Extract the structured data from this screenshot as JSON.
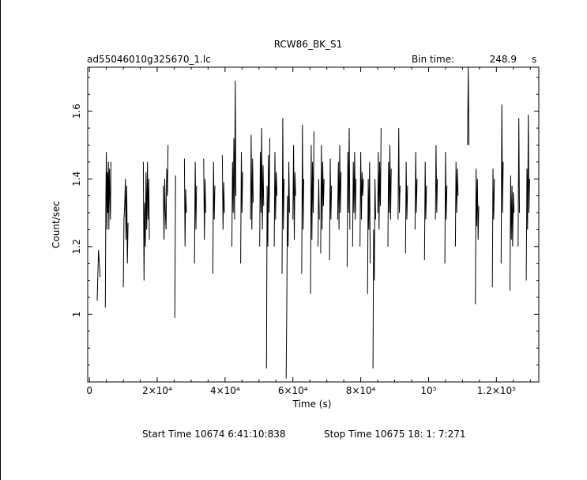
{
  "chart_data": {
    "type": "line",
    "title": "RCW86_BK_S1",
    "file_label": "ad55046010g325670_1.lc",
    "bin_time_label": "Bin time:",
    "bin_time_value": "248.9",
    "bin_time_unit": "s",
    "xlabel": "Time (s)",
    "ylabel": "Count/sec",
    "xlim": [
      -500,
      132500
    ],
    "ylim": [
      0.8,
      1.73
    ],
    "x_ticks": [
      {
        "value": 0,
        "label": "0"
      },
      {
        "value": 20000,
        "label": "2×10⁴"
      },
      {
        "value": 40000,
        "label": "4×10⁴"
      },
      {
        "value": 60000,
        "label": "6×10⁴"
      },
      {
        "value": 80000,
        "label": "8×10⁴"
      },
      {
        "value": 100000,
        "label": "10⁵"
      },
      {
        "value": 120000,
        "label": "1.2×10⁵"
      }
    ],
    "y_ticks": [
      {
        "value": 1.0,
        "label": "1"
      },
      {
        "value": 1.2,
        "label": "1.2"
      },
      {
        "value": 1.4,
        "label": "1.4"
      },
      {
        "value": 1.6,
        "label": "1.6"
      }
    ],
    "start_time_label": "Start Time 10674  6:41:10:838",
    "stop_time_label": "Stop Time 10675 18: 1: 7:271",
    "segments": [
      {
        "x": [
          2300,
          2700,
          3200
        ],
        "y": [
          1.04,
          1.19,
          1.11
        ]
      },
      {
        "x": [
          4700,
          4850,
          5000,
          5150,
          5300,
          5450,
          5600,
          5750,
          5900,
          6050,
          6200,
          6350
        ],
        "y": [
          1.02,
          1.34,
          1.48,
          1.25,
          1.42,
          1.3,
          1.45,
          1.25,
          1.43,
          1.36,
          1.28,
          1.45
        ]
      },
      {
        "x": [
          10000,
          10200,
          10400,
          10600,
          10800,
          11000,
          11200,
          11400
        ],
        "y": [
          1.08,
          1.28,
          1.32,
          1.4,
          1.22,
          1.38,
          1.15,
          1.27
        ]
      },
      {
        "x": [
          15900,
          16100,
          16300,
          16500,
          16700,
          16900,
          17100,
          17300,
          17500,
          17700
        ],
        "y": [
          1.45,
          1.1,
          1.33,
          1.2,
          1.42,
          1.25,
          1.45,
          1.28,
          1.4,
          1.22
        ]
      },
      {
        "x": [
          21800,
          22000,
          22200,
          22400,
          22600,
          22800,
          23000,
          23200
        ],
        "y": [
          1.38,
          1.22,
          1.4,
          1.3,
          1.25,
          1.43,
          1.35,
          1.5
        ]
      },
      {
        "x": [
          25200,
          25400
        ],
        "y": [
          0.99,
          1.41
        ]
      },
      {
        "x": [
          28000,
          28200,
          28400,
          28600
        ],
        "y": [
          1.46,
          1.2,
          1.37,
          1.3
        ]
      },
      {
        "x": [
          31000,
          31200,
          31400,
          31600
        ],
        "y": [
          1.15,
          1.45,
          1.25,
          1.38
        ]
      },
      {
        "x": [
          33700,
          33900,
          34100,
          34300
        ],
        "y": [
          1.46,
          1.22,
          1.4,
          1.3
        ]
      },
      {
        "x": [
          36400,
          36600,
          36800,
          37000
        ],
        "y": [
          1.12,
          1.45,
          1.28,
          1.38
        ]
      },
      {
        "x": [
          39200,
          39400,
          39600,
          39800
        ],
        "y": [
          1.47,
          1.25,
          1.39,
          1.3
        ]
      },
      {
        "x": [
          42000,
          42200,
          42400,
          42600,
          42800,
          43000,
          43200
        ],
        "y": [
          1.2,
          1.45,
          1.3,
          1.52,
          1.28,
          1.69,
          1.35
        ]
      },
      {
        "x": [
          44600,
          44800,
          45000,
          45200
        ],
        "y": [
          1.15,
          1.48,
          1.3,
          1.42
        ]
      },
      {
        "x": [
          47500,
          47700,
          47900,
          48100,
          48300
        ],
        "y": [
          1.28,
          1.53,
          1.25,
          1.46,
          1.33
        ]
      },
      {
        "x": [
          50200,
          50400,
          50600,
          50800,
          51000,
          51200,
          51400
        ],
        "y": [
          1.2,
          1.48,
          1.3,
          1.55,
          1.25,
          1.44,
          1.32
        ]
      },
      {
        "x": [
          52200,
          52400,
          52600,
          52800,
          53000,
          53200
        ],
        "y": [
          0.84,
          1.38,
          1.2,
          1.47,
          1.3,
          1.52
        ]
      },
      {
        "x": [
          54500,
          54700,
          54900,
          55100,
          55300
        ],
        "y": [
          1.2,
          1.48,
          1.28,
          1.42,
          1.35
        ]
      },
      {
        "x": [
          56800,
          57000,
          57200,
          57400
        ],
        "y": [
          1.12,
          1.58,
          1.25,
          1.4
        ]
      },
      {
        "x": [
          58000,
          58200,
          58400,
          58600,
          58800,
          59000
        ],
        "y": [
          0.81,
          1.03,
          1.35,
          1.2,
          1.45,
          1.3
        ]
      },
      {
        "x": [
          60000,
          60200,
          60400,
          60600,
          60800
        ],
        "y": [
          1.28,
          1.5,
          1.22,
          1.42,
          1.35
        ]
      },
      {
        "x": [
          62600,
          62800,
          63000,
          63200
        ],
        "y": [
          1.12,
          1.56,
          1.25,
          1.4
        ]
      },
      {
        "x": [
          65200,
          65400,
          65600,
          65800,
          66000,
          66200
        ],
        "y": [
          1.06,
          1.5,
          1.22,
          1.45,
          1.3,
          1.54
        ]
      },
      {
        "x": [
          67400,
          67600,
          67800
        ],
        "y": [
          1.2,
          1.4,
          1.28
        ]
      },
      {
        "x": [
          68200,
          68400,
          68600,
          68800,
          69000,
          69200
        ],
        "y": [
          1.18,
          1.5,
          1.25,
          1.45,
          1.32,
          1.4
        ]
      },
      {
        "x": [
          70800,
          71000,
          71200,
          71400
        ],
        "y": [
          1.16,
          1.46,
          1.28,
          1.38
        ]
      },
      {
        "x": [
          73200,
          73400,
          73600,
          73800,
          74000,
          74200
        ],
        "y": [
          1.28,
          1.45,
          1.25,
          1.5,
          1.3,
          1.42
        ]
      },
      {
        "x": [
          76000,
          76200,
          76400,
          76600,
          76800
        ],
        "y": [
          1.14,
          1.48,
          1.3,
          1.55,
          1.25
        ]
      },
      {
        "x": [
          77600,
          77800,
          78000,
          78200,
          78400,
          78600
        ],
        "y": [
          1.2,
          1.45,
          1.3,
          1.48,
          1.28,
          1.4
        ]
      },
      {
        "x": [
          79800,
          80000,
          80200,
          80400,
          80600,
          80800
        ],
        "y": [
          1.2,
          1.48,
          1.28,
          1.42,
          1.35,
          1.4
        ]
      },
      {
        "x": [
          82000,
          82200,
          82400,
          82600,
          82800
        ],
        "y": [
          1.06,
          1.4,
          1.25,
          1.45,
          1.15
        ]
      },
      {
        "x": [
          83600,
          83800,
          84000,
          84200,
          84400
        ],
        "y": [
          0.84,
          1.25,
          1.1,
          1.4,
          1.28
        ]
      },
      {
        "x": [
          85000,
          85200,
          85400,
          85600,
          85800,
          86000
        ],
        "y": [
          1.3,
          1.48,
          1.25,
          1.45,
          1.32,
          1.55
        ]
      },
      {
        "x": [
          88000,
          88200,
          88400,
          88600,
          88800,
          89000
        ],
        "y": [
          1.2,
          1.45,
          1.3,
          1.5,
          1.28,
          1.43
        ]
      },
      {
        "x": [
          91000,
          91200,
          91400,
          91600
        ],
        "y": [
          1.28,
          1.55,
          1.3,
          1.38
        ]
      },
      {
        "x": [
          93200,
          93400,
          93600,
          93800
        ],
        "y": [
          1.18,
          1.45,
          1.28,
          1.38
        ]
      },
      {
        "x": [
          96000,
          96200,
          96400,
          96600
        ],
        "y": [
          1.25,
          1.48,
          1.3,
          1.4
        ]
      },
      {
        "x": [
          98800,
          99000,
          99200,
          99400
        ],
        "y": [
          1.16,
          1.45,
          1.28,
          1.38
        ]
      },
      {
        "x": [
          102000,
          102200,
          102400,
          102600
        ],
        "y": [
          1.28,
          1.5,
          1.3,
          1.4
        ]
      },
      {
        "x": [
          104800,
          105000,
          105200,
          105400
        ],
        "y": [
          1.15,
          1.48,
          1.28,
          1.38
        ]
      },
      {
        "x": [
          107900,
          108100,
          108300,
          108500,
          108700
        ],
        "y": [
          1.2,
          1.45,
          1.3,
          1.43,
          1.35
        ]
      },
      {
        "x": [
          111500,
          111700,
          111900
        ],
        "y": [
          1.5,
          1.73,
          1.5
        ]
      },
      {
        "x": [
          113800,
          114000,
          114200,
          114400,
          114600,
          114800
        ],
        "y": [
          1.03,
          1.43,
          1.26,
          1.4,
          1.22,
          1.32
        ]
      },
      {
        "x": [
          118800,
          119000,
          119200,
          119400
        ],
        "y": [
          1.08,
          1.43,
          1.28,
          1.4
        ]
      },
      {
        "x": [
          121400,
          121600,
          121800,
          122000
        ],
        "y": [
          1.15,
          1.62,
          1.3,
          1.45
        ]
      },
      {
        "x": [
          124000,
          124200,
          124400,
          124600,
          124800,
          125000,
          125200
        ],
        "y": [
          1.07,
          1.41,
          1.22,
          1.38,
          1.2,
          1.36,
          1.3
        ]
      },
      {
        "x": [
          126400,
          126600,
          126800
        ],
        "y": [
          1.2,
          1.58,
          1.3
        ]
      },
      {
        "x": [
          128800,
          129000,
          129200,
          129400,
          129600,
          129800
        ],
        "y": [
          1.1,
          1.43,
          1.25,
          1.59,
          1.3,
          1.4
        ]
      }
    ]
  }
}
